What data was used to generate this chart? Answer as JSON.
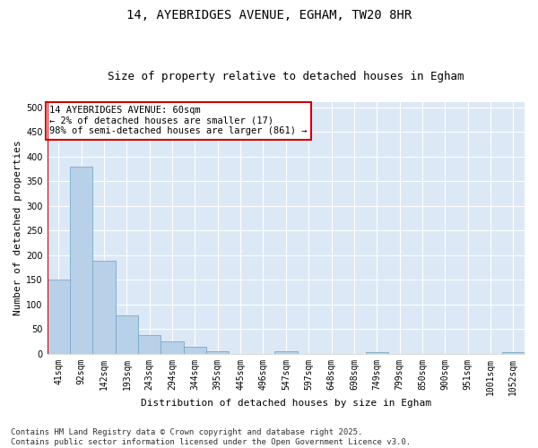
{
  "title1": "14, AYEBRIDGES AVENUE, EGHAM, TW20 8HR",
  "title2": "Size of property relative to detached houses in Egham",
  "xlabel": "Distribution of detached houses by size in Egham",
  "ylabel": "Number of detached properties",
  "categories": [
    "41sqm",
    "92sqm",
    "142sqm",
    "193sqm",
    "243sqm",
    "294sqm",
    "344sqm",
    "395sqm",
    "445sqm",
    "496sqm",
    "547sqm",
    "597sqm",
    "648sqm",
    "698sqm",
    "749sqm",
    "799sqm",
    "850sqm",
    "900sqm",
    "951sqm",
    "1001sqm",
    "1052sqm"
  ],
  "values": [
    150,
    380,
    188,
    78,
    37,
    25,
    15,
    5,
    0,
    0,
    5,
    0,
    0,
    0,
    3,
    0,
    0,
    0,
    0,
    0,
    3
  ],
  "bar_color": "#b8d0e8",
  "bar_edge_color": "#7aaac8",
  "highlight_color": "#cc0000",
  "annotation_box_color": "#ffffff",
  "annotation_border_color": "#cc0000",
  "annotation_text_line1": "14 AYEBRIDGES AVENUE: 60sqm",
  "annotation_text_line2": "← 2% of detached houses are smaller (17)",
  "annotation_text_line3": "98% of semi-detached houses are larger (861) →",
  "ylim": [
    0,
    510
  ],
  "yticks": [
    0,
    50,
    100,
    150,
    200,
    250,
    300,
    350,
    400,
    450,
    500
  ],
  "bg_color": "#dce8f5",
  "grid_color": "#ffffff",
  "footer_line1": "Contains HM Land Registry data © Crown copyright and database right 2025.",
  "footer_line2": "Contains public sector information licensed under the Open Government Licence v3.0.",
  "title1_fontsize": 10,
  "title2_fontsize": 9,
  "xlabel_fontsize": 8,
  "ylabel_fontsize": 8,
  "tick_fontsize": 7,
  "annotation_fontsize": 7.5,
  "footer_fontsize": 6.5
}
